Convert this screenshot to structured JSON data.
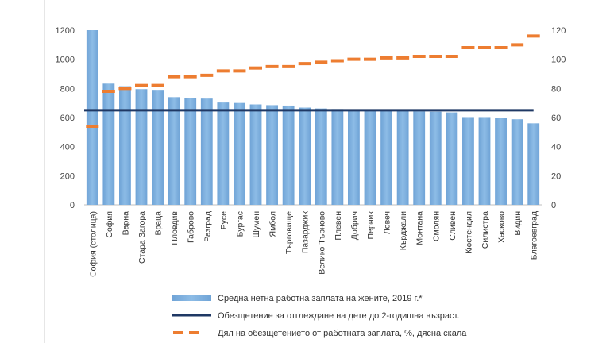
{
  "chart_data": {
    "type": "bar",
    "title": "",
    "xlabel": "",
    "ylabel": "",
    "categories": [
      "София (столица)",
      "София",
      "Варна",
      "Стара Загора",
      "Враца",
      "Пловдив",
      "Габрово",
      "Разград",
      "Русе",
      "Бургас",
      "Шумен",
      "Ямбол",
      "Търговище",
      "Пазарджик",
      "Велико Търново",
      "Плевен",
      "Добрич",
      "Перник",
      "Ловеч",
      "Кърджали",
      "Монтана",
      "Смолян",
      "Сливен",
      "Кюстендил",
      "Силистра",
      "Хасково",
      "Видин",
      "Благоевград"
    ],
    "series": [
      {
        "name": "Средна нетна работна заплата на жените, 2019 г.*",
        "kind": "bar",
        "axis": "left",
        "color": "#7AAEDC",
        "values": [
          1200,
          833,
          815,
          795,
          790,
          740,
          735,
          730,
          703,
          700,
          690,
          685,
          682,
          668,
          662,
          658,
          650,
          648,
          645,
          645,
          642,
          640,
          635,
          603,
          603,
          600,
          588,
          560
        ]
      },
      {
        "name": "Обезщетение за отглеждане на дете до 2-годишна възраст.",
        "kind": "line",
        "axis": "left",
        "color": "#1F3864",
        "values": [
          650,
          650,
          650,
          650,
          650,
          650,
          650,
          650,
          650,
          650,
          650,
          650,
          650,
          650,
          650,
          650,
          650,
          650,
          650,
          650,
          650,
          650,
          650,
          650,
          650,
          650,
          650,
          650
        ]
      },
      {
        "name": "Дял на обезщетението от работната заплата, %, дясна скала",
        "kind": "dash-marker",
        "axis": "right",
        "color": "#ED7D31",
        "values": [
          54,
          78,
          80,
          82,
          82,
          88,
          88,
          89,
          92,
          92,
          94,
          95,
          95,
          97,
          98,
          99,
          100,
          100,
          101,
          101,
          102,
          102,
          102,
          108,
          108,
          108,
          110,
          116
        ]
      }
    ],
    "y_left": {
      "min": 0,
      "max": 1200,
      "ticks": [
        "0",
        "200",
        "400",
        "600",
        "800",
        "1000",
        "1200"
      ]
    },
    "y_right": {
      "min": 0,
      "max": 120,
      "ticks": [
        "0",
        "20",
        "40",
        "60",
        "80",
        "100",
        "120"
      ]
    },
    "legend_position": "bottom"
  }
}
